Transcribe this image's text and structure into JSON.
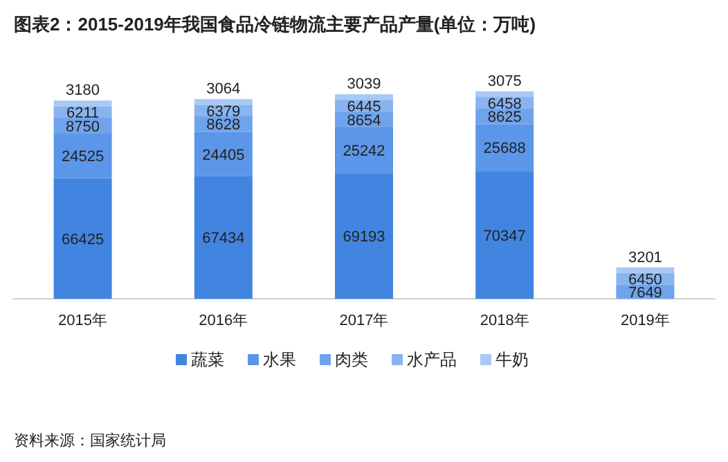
{
  "chart_data": {
    "type": "bar",
    "stacked": true,
    "data_labels": true,
    "legend": "bottom",
    "title": "图表2：2015-2019年我国食品冷链物流主要产品产量(单位：万吨)",
    "annotations": [
      "资料来源：国家统计局"
    ],
    "categories": [
      "2015年",
      "2016年",
      "2017年",
      "2018年",
      "2019年"
    ],
    "series": [
      {
        "name": "蔬菜",
        "color": "#4285e0",
        "values": [
          66425,
          67434,
          69193,
          70347,
          null
        ]
      },
      {
        "name": "水果",
        "color": "#5b96e8",
        "values": [
          24525,
          24405,
          25242,
          25688,
          null
        ]
      },
      {
        "name": "肉类",
        "color": "#6fa3ec",
        "values": [
          8750,
          8628,
          8654,
          8625,
          7649
        ]
      },
      {
        "name": "水产品",
        "color": "#88b4f0",
        "values": [
          6211,
          6379,
          6445,
          6458,
          6450
        ]
      },
      {
        "name": "牛奶",
        "color": "#a9c9f5",
        "values": [
          3180,
          3064,
          3039,
          3075,
          3201
        ]
      }
    ]
  }
}
